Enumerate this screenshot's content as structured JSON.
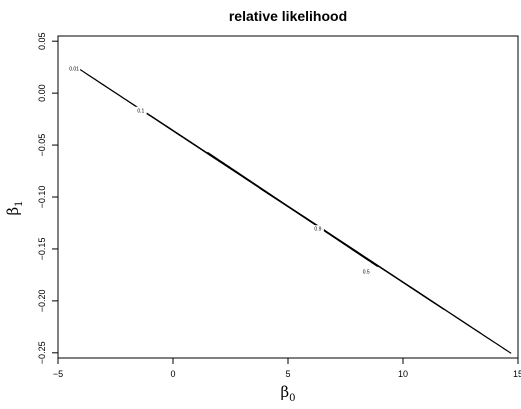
{
  "chart_data": {
    "type": "contour",
    "title": "relative likelihood",
    "xlabel_main": "β",
    "xlabel_sub": "0",
    "ylabel_main": "β",
    "ylabel_sub": "1",
    "xlim": [
      -5,
      15
    ],
    "ylim": [
      -0.255,
      0.055
    ],
    "x_ticks": [
      {
        "value": -5,
        "label": "−5"
      },
      {
        "value": 0,
        "label": "0"
      },
      {
        "value": 5,
        "label": "5"
      },
      {
        "value": 10,
        "label": "10"
      },
      {
        "value": 15,
        "label": "15"
      }
    ],
    "y_ticks": [
      {
        "value": -0.25,
        "label": "−0.25"
      },
      {
        "value": -0.2,
        "label": "−0.20"
      },
      {
        "value": -0.15,
        "label": "−0.15"
      },
      {
        "value": -0.1,
        "label": "−0.10"
      },
      {
        "value": -0.05,
        "label": "−0.05"
      },
      {
        "value": 0.0,
        "label": "0.00"
      },
      {
        "value": 0.05,
        "label": "0.05"
      }
    ],
    "center": {
      "x": 5.2,
      "y": -0.112
    },
    "contours": [
      {
        "level": 0.01,
        "label": "0.01",
        "label_at": {
          "x": -4.3,
          "y": 0.023
        },
        "major": [
          9.5,
          -0.1385
        ],
        "minor": 0.23
      },
      {
        "level": 0.1,
        "label": "0.1",
        "label_at": {
          "x": -1.4,
          "y": -0.017
        },
        "major": [
          6.6,
          -0.0965
        ],
        "minor": 0.2
      },
      {
        "level": 0.5,
        "label": "0.5",
        "label_at": {
          "x": 8.4,
          "y": -0.172
        },
        "major": [
          3.7,
          -0.055
        ],
        "minor": 0.19
      },
      {
        "level": 0.9,
        "label": "0.9",
        "label_at": {
          "x": 6.3,
          "y": -0.131
        },
        "major": [
          1.4,
          -0.02
        ],
        "minor": 0.17
      }
    ]
  }
}
